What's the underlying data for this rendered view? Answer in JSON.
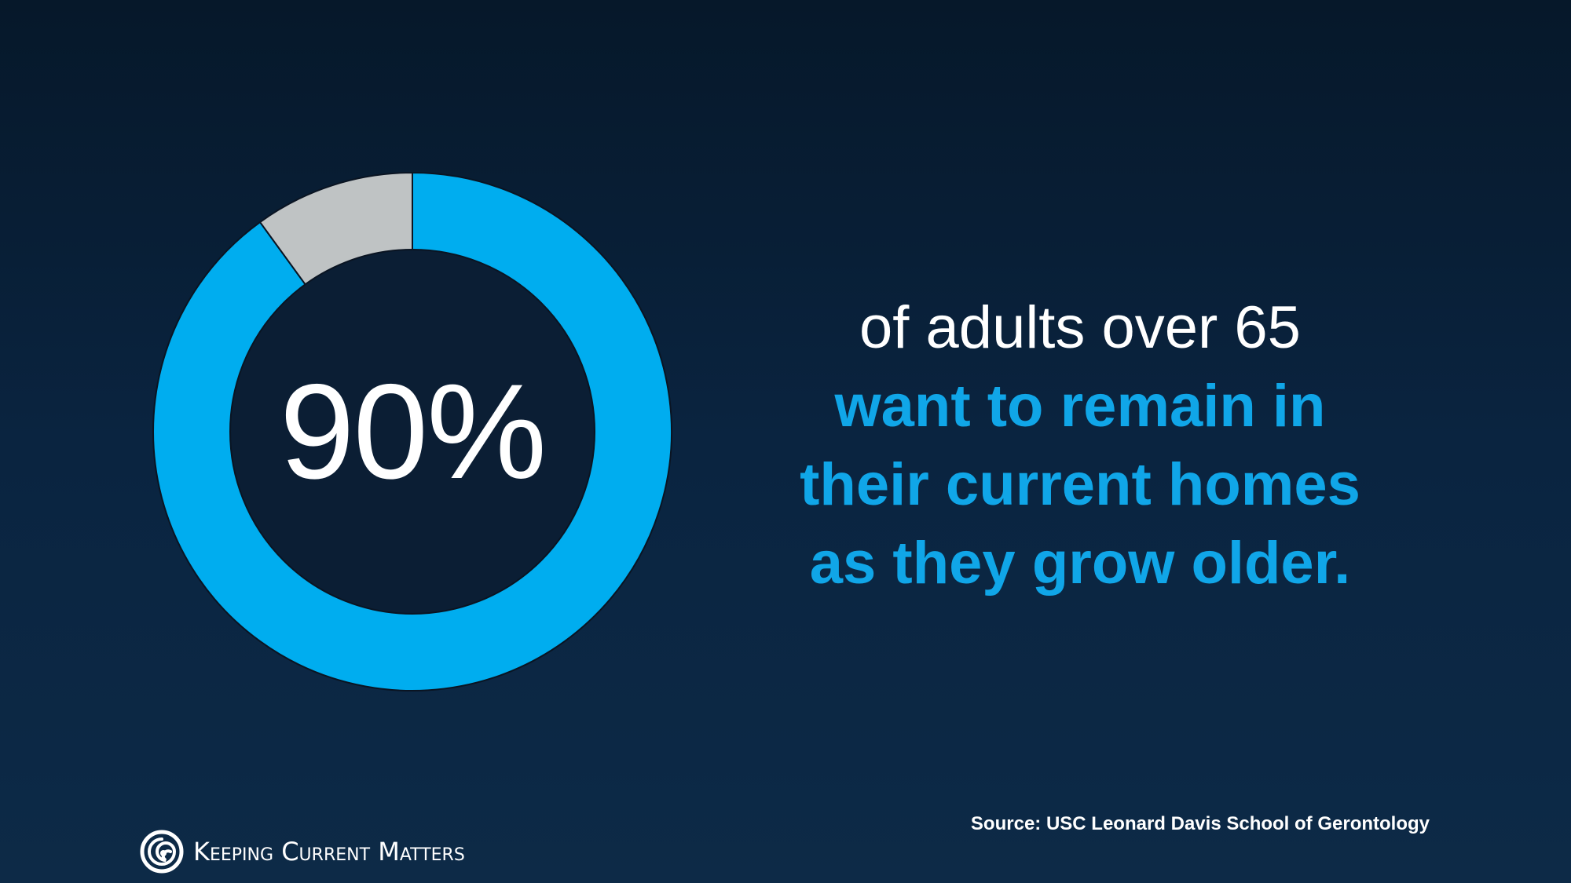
{
  "chart_data": {
    "type": "pie",
    "donut": true,
    "categories": [
      "",
      ""
    ],
    "values": [
      90,
      10
    ],
    "colors": [
      "#00adef",
      "#bfc3c4"
    ],
    "center_label": "90%"
  },
  "headline": {
    "line1": "of adults over 65",
    "line2": "want to remain in",
    "line3": "their current homes",
    "line4": "as they grow older."
  },
  "source": "Source: USC Leonard Davis School of Gerontology",
  "brand": {
    "name": "Keeping Current Matters",
    "logo_icon": "spiral-logo-icon"
  },
  "colors": {
    "background_top": "#06182a",
    "background_bottom": "#0d2a47",
    "accent_blue": "#10a6e8",
    "segment_blue": "#00adef",
    "segment_gray": "#bfc3c4",
    "inner": "#0b1e34"
  }
}
